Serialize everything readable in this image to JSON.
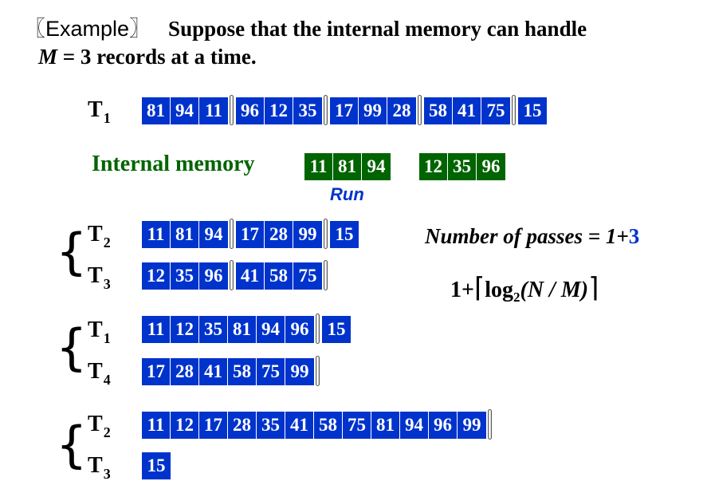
{
  "title": {
    "example": "〖Example〗",
    "line1": "Suppose that the internal memory can handle",
    "m_var": "M",
    "line2_rest": " = 3 records at a time."
  },
  "tapes": {
    "t1_initial": {
      "name": "T",
      "sub": "1",
      "runs": [
        [
          "81",
          "94",
          "11"
        ],
        [
          "96",
          "12",
          "35"
        ],
        [
          "17",
          "99",
          "28"
        ],
        [
          "58",
          "41",
          "75"
        ],
        [
          "15"
        ]
      ]
    },
    "t2_pass1": {
      "name": "T",
      "sub": "2",
      "runs": [
        [
          "11",
          "81",
          "94"
        ],
        [
          "17",
          "28",
          "99"
        ],
        [
          "15"
        ]
      ]
    },
    "t3_pass1": {
      "name": "T",
      "sub": "3",
      "runs": [
        [
          "12",
          "35",
          "96"
        ],
        [
          "41",
          "58",
          "75"
        ]
      ]
    },
    "t1_pass2": {
      "name": "T",
      "sub": "1",
      "runs": [
        [
          "11",
          "12",
          "35",
          "81",
          "94",
          "96"
        ],
        [
          "15"
        ]
      ]
    },
    "t4_pass2": {
      "name": "T",
      "sub": "4",
      "runs": [
        [
          "17",
          "28",
          "41",
          "58",
          "75",
          "99"
        ]
      ]
    },
    "t2_pass3": {
      "name": "T",
      "sub": "2",
      "runs": [
        [
          "11",
          "12",
          "17",
          "28",
          "35",
          "41",
          "58",
          "75",
          "81",
          "94",
          "96",
          "99"
        ]
      ]
    },
    "t3_pass3": {
      "name": "T",
      "sub": "3",
      "runs": [
        [
          "15"
        ]
      ]
    }
  },
  "internal_memory": {
    "label": "Internal memory",
    "buffer1": [
      "11",
      "81",
      "94"
    ],
    "buffer2": [
      "12",
      "35",
      "96"
    ],
    "run_label": "Run"
  },
  "passes": {
    "label": "Number of passes = 1+",
    "extra": "3"
  },
  "formula": {
    "one_plus": "1+",
    "log": "log",
    "base": "2",
    "arg": "(N / M)"
  },
  "colors": {
    "tape_blue": "#0033CC",
    "memory_green": "#006400",
    "accent_blue": "#0033CC"
  }
}
